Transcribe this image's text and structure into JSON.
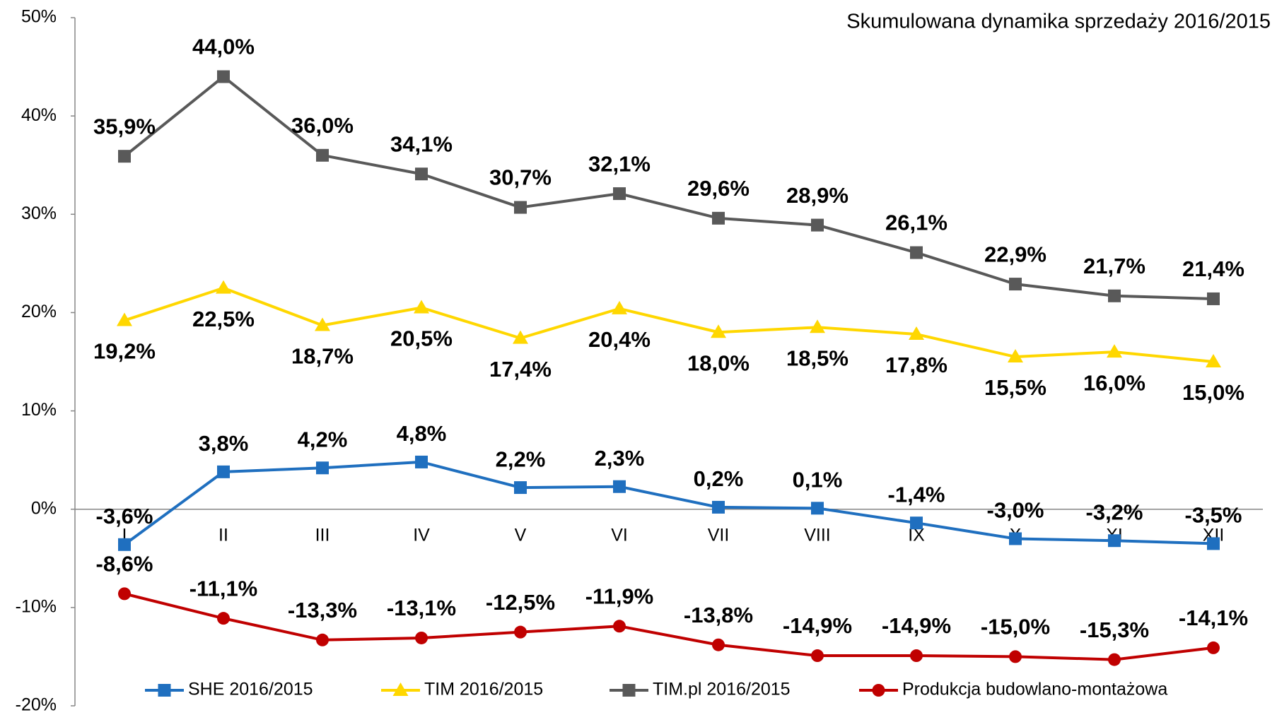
{
  "chart_data": {
    "type": "line",
    "title": "Skumulowana dynamika sprzedaży 2016/2015",
    "categories": [
      "I",
      "II",
      "III",
      "IV",
      "V",
      "VI",
      "VII",
      "VIII",
      "IX",
      "X",
      "XI",
      "XII"
    ],
    "ylim": [
      -20,
      50
    ],
    "yticks": [
      {
        "value": -20,
        "label": "-20%"
      },
      {
        "value": -10,
        "label": "-10%"
      },
      {
        "value": 0,
        "label": "0%"
      },
      {
        "value": 10,
        "label": "10%"
      },
      {
        "value": 20,
        "label": "20%"
      },
      {
        "value": 30,
        "label": "30%"
      },
      {
        "value": 40,
        "label": "40%"
      },
      {
        "value": 50,
        "label": "50%"
      }
    ],
    "grid": false,
    "legend": "bottom",
    "series": [
      {
        "name": "SHE 2016/2015",
        "color": "#1f6fbf",
        "marker": "square",
        "values": [
          -3.6,
          3.8,
          4.2,
          4.8,
          2.2,
          2.3,
          0.2,
          0.1,
          -1.4,
          -3.0,
          -3.2,
          -3.5
        ],
        "value_labels": [
          "-3,6%",
          "3,8%",
          "4,2%",
          "4,8%",
          "2,2%",
          "2,3%",
          "0,2%",
          "0,1%",
          "-1,4%",
          "-3,0%",
          "-3,2%",
          "-3,5%"
        ]
      },
      {
        "name": "TIM 2016/2015",
        "color": "#ffd700",
        "marker": "triangle",
        "values": [
          19.2,
          22.5,
          18.7,
          20.5,
          17.4,
          20.4,
          18.0,
          18.5,
          17.8,
          15.5,
          16.0,
          15.0
        ],
        "value_labels": [
          "19,2%",
          "22,5%",
          "18,7%",
          "20,5%",
          "17,4%",
          "20,4%",
          "18,0%",
          "18,5%",
          "17,8%",
          "15,5%",
          "16,0%",
          "15,0%"
        ]
      },
      {
        "name": "TIM.pl 2016/2015",
        "color": "#595959",
        "marker": "square",
        "values": [
          35.9,
          44.0,
          36.0,
          34.1,
          30.7,
          32.1,
          29.6,
          28.9,
          26.1,
          22.9,
          21.7,
          21.4
        ],
        "value_labels": [
          "35,9%",
          "44,0%",
          "36,0%",
          "34,1%",
          "30,7%",
          "32,1%",
          "29,6%",
          "28,9%",
          "26,1%",
          "22,9%",
          "21,7%",
          "21,4%"
        ]
      },
      {
        "name": "Produkcja budowlano-montażowa",
        "color": "#c00000",
        "marker": "circle",
        "values": [
          -8.6,
          -11.1,
          -13.3,
          -13.1,
          -12.5,
          -11.9,
          -13.8,
          -14.9,
          -14.9,
          -15.0,
          -15.3,
          -14.1
        ],
        "value_labels": [
          "-8,6%",
          "-11,1%",
          "-13,3%",
          "-13,1%",
          "-12,5%",
          "-11,9%",
          "-13,8%",
          "-14,9%",
          "-14,9%",
          "-15,0%",
          "-15,3%",
          "-14,1%"
        ]
      }
    ]
  }
}
